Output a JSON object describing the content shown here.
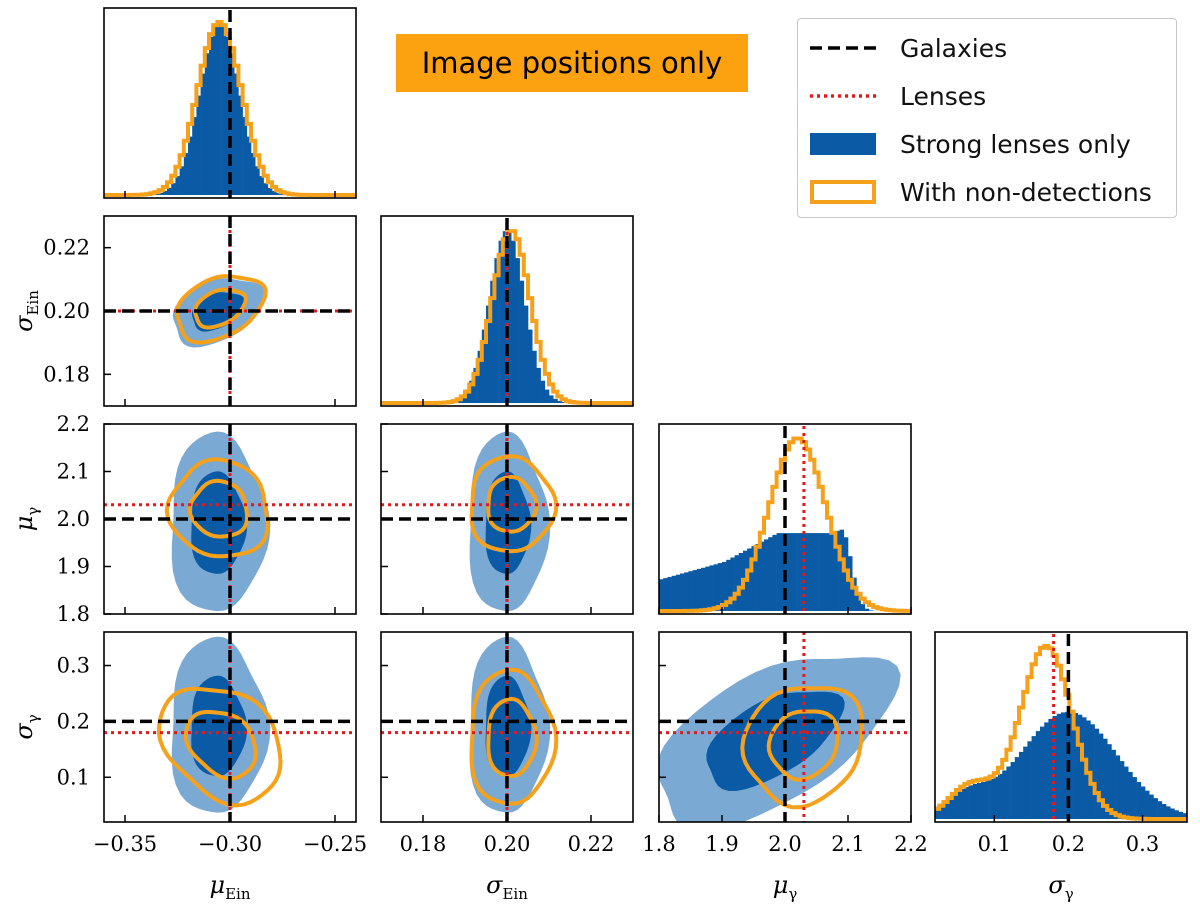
{
  "colors": {
    "strong_dark": "#0a5aa6",
    "strong_light": "#7aa9d4",
    "nondet": "#f6a11c",
    "galaxies_line": "#000000",
    "lenses_line": "#e31a1c",
    "title_bg": "#fca10f"
  },
  "title_box": {
    "text": "Image positions only"
  },
  "legend": {
    "items": [
      {
        "label": "Galaxies",
        "style": "dashed-black"
      },
      {
        "label": "Lenses",
        "style": "dotted-red"
      },
      {
        "label": "Strong lenses only",
        "style": "filled-blue"
      },
      {
        "label": "With non-detections",
        "style": "outline-orange"
      }
    ]
  },
  "chart_data": {
    "type": "corner",
    "parameters": [
      {
        "key": "mu_ein",
        "symbol": "μ",
        "subscript": "Ein",
        "range": [
          -0.36,
          -0.24
        ],
        "ticks": [
          -0.35,
          -0.3,
          -0.25
        ],
        "tick_labels": [
          "−0.35",
          "−0.30",
          "−0.25"
        ],
        "galaxies": -0.3,
        "lenses": -0.3,
        "strong": {
          "mean": -0.305,
          "sd": 0.0095
        },
        "nondet": {
          "mean": -0.305,
          "sd": 0.0105
        }
      },
      {
        "key": "sigma_ein",
        "symbol": "σ",
        "subscript": "Ein",
        "range": [
          0.17,
          0.23
        ],
        "ticks": [
          0.18,
          0.2,
          0.22
        ],
        "tick_labels": [
          "0.18",
          "0.20",
          "0.22"
        ],
        "galaxies": 0.2,
        "lenses": 0.2,
        "strong": {
          "mean": 0.2,
          "sd": 0.0042
        },
        "nondet": {
          "mean": 0.201,
          "sd": 0.0045
        }
      },
      {
        "key": "mu_gamma",
        "symbol": "μ",
        "subscript": "γ",
        "range": [
          1.8,
          2.2
        ],
        "ticks": [
          1.8,
          1.9,
          2.0,
          2.1,
          2.2
        ],
        "tick_labels": [
          "1.8",
          "1.9",
          "2.0",
          "2.1",
          "2.2"
        ],
        "galaxies": 2.0,
        "lenses": 2.03,
        "strong": {
          "mean": 2.0,
          "sd": 0.085
        },
        "nondet": {
          "mean": 2.02,
          "sd": 0.045
        }
      },
      {
        "key": "sigma_gamma",
        "symbol": "σ",
        "subscript": "γ",
        "range": [
          0.02,
          0.36
        ],
        "ticks": [
          0.1,
          0.2,
          0.3
        ],
        "tick_labels": [
          "0.1",
          "0.2",
          "0.3"
        ],
        "galaxies": 0.2,
        "lenses": 0.18,
        "strong": {
          "mean": 0.19,
          "sd": 0.065
        },
        "nondet": {
          "mean": 0.17,
          "sd": 0.035
        }
      }
    ],
    "pairs": [
      {
        "row": 1,
        "col": 0,
        "strong_center": [
          -0.306,
          0.2
        ],
        "strong_sd": [
          0.011,
          0.0045
        ],
        "strong_rot": -25,
        "nondet_center": [
          -0.305,
          0.201
        ],
        "nondet_sd": [
          0.011,
          0.0046
        ],
        "nondet_rot": -25
      },
      {
        "row": 2,
        "col": 0,
        "strong_center": [
          -0.306,
          1.99
        ],
        "strong_sd": [
          0.011,
          0.09
        ],
        "strong_rot": 0,
        "nondet_center": [
          -0.305,
          2.02
        ],
        "nondet_sd": [
          0.012,
          0.05
        ],
        "nondet_rot": 35
      },
      {
        "row": 2,
        "col": 1,
        "strong_center": [
          0.2,
          1.99
        ],
        "strong_sd": [
          0.0045,
          0.09
        ],
        "strong_rot": 0,
        "nondet_center": [
          0.201,
          2.03
        ],
        "nondet_sd": [
          0.005,
          0.05
        ],
        "nondet_rot": 0
      },
      {
        "row": 3,
        "col": 0,
        "strong_center": [
          -0.306,
          0.19
        ],
        "strong_sd": [
          0.011,
          0.075
        ],
        "strong_rot": 0,
        "nondet_center": [
          -0.304,
          0.16
        ],
        "nondet_sd": [
          0.012,
          0.06
        ],
        "nondet_rot": -50
      },
      {
        "row": 3,
        "col": 1,
        "strong_center": [
          0.2,
          0.19
        ],
        "strong_sd": [
          0.0045,
          0.075
        ],
        "strong_rot": 0,
        "nondet_center": [
          0.201,
          0.17
        ],
        "nondet_sd": [
          0.005,
          0.06
        ],
        "nondet_rot": 0
      },
      {
        "row": 3,
        "col": 2,
        "strong_center": [
          1.98,
          0.17
        ],
        "strong_sd": [
          0.1,
          0.055
        ],
        "strong_rot": -30,
        "nondet_center": [
          2.03,
          0.16
        ],
        "nondet_sd": [
          0.05,
          0.05
        ],
        "nondet_rot": -45
      }
    ]
  }
}
